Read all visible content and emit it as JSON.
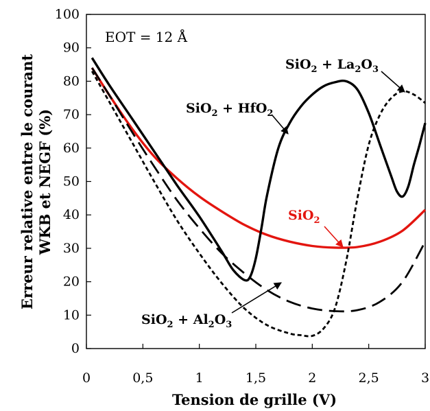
{
  "chart_data": {
    "type": "line",
    "xlabel": "Tension de grille (V)",
    "ylabel_line1": "Erreur relative entre le courant",
    "ylabel_line2": "WKB et NEGF (%)",
    "xlim": [
      0,
      3
    ],
    "ylim": [
      0,
      100
    ],
    "x_ticks": [
      "0",
      "0,5",
      "1",
      "1,5",
      "2",
      "2,5",
      "3"
    ],
    "y_ticks": [
      "0",
      "10",
      "20",
      "30",
      "40",
      "50",
      "60",
      "70",
      "80",
      "90",
      "100"
    ],
    "grid": false,
    "annotation_text": "EOT = 12 Å",
    "series": [
      {
        "key": "sio2",
        "label_main": "SiO",
        "label_sub": "2",
        "label_rest": "",
        "color": "#e3150f",
        "style": "solid",
        "points": [
          [
            0.05,
            84
          ],
          [
            0.2,
            76
          ],
          [
            0.4,
            66
          ],
          [
            0.6,
            57.5
          ],
          [
            0.8,
            51
          ],
          [
            1.0,
            45.5
          ],
          [
            1.2,
            41
          ],
          [
            1.4,
            37
          ],
          [
            1.6,
            34
          ],
          [
            1.8,
            32
          ],
          [
            2.0,
            30.7
          ],
          [
            2.2,
            30.2
          ],
          [
            2.4,
            30.4
          ],
          [
            2.6,
            32
          ],
          [
            2.8,
            35.3
          ],
          [
            3.0,
            41.5
          ]
        ]
      },
      {
        "key": "hfo2",
        "label_main": "SiO",
        "label_sub": "2",
        "label_rest": " + HfO",
        "label_sub2": "2",
        "label_tail": "",
        "color": "#000000",
        "style": "solid",
        "points": [
          [
            0.05,
            87
          ],
          [
            0.2,
            79
          ],
          [
            0.4,
            69
          ],
          [
            0.6,
            59
          ],
          [
            0.8,
            49
          ],
          [
            1.0,
            39.5
          ],
          [
            1.2,
            29
          ],
          [
            1.3,
            23.5
          ],
          [
            1.4,
            20.5
          ],
          [
            1.45,
            21.5
          ],
          [
            1.5,
            27
          ],
          [
            1.55,
            36
          ],
          [
            1.6,
            46
          ],
          [
            1.7,
            60
          ],
          [
            1.8,
            67.5
          ],
          [
            1.9,
            72.5
          ],
          [
            2.0,
            76
          ],
          [
            2.1,
            78.5
          ],
          [
            2.2,
            79.7
          ],
          [
            2.3,
            80
          ],
          [
            2.4,
            77.5
          ],
          [
            2.5,
            70.5
          ],
          [
            2.6,
            61
          ],
          [
            2.7,
            51.5
          ],
          [
            2.75,
            47
          ],
          [
            2.8,
            45.5
          ],
          [
            2.85,
            48.5
          ],
          [
            2.9,
            55
          ],
          [
            2.95,
            61
          ],
          [
            3.0,
            67.5
          ]
        ]
      },
      {
        "key": "al2o3",
        "label_main": "SiO",
        "label_sub": "2",
        "label_rest": " + Al",
        "label_sub2": "2",
        "label_tail": "O",
        "label_sub3": "3",
        "color": "#000000",
        "style": "dashed",
        "points": [
          [
            0.05,
            84
          ],
          [
            0.2,
            76
          ],
          [
            0.4,
            65
          ],
          [
            0.6,
            54.5
          ],
          [
            0.8,
            44.5
          ],
          [
            1.0,
            36
          ],
          [
            1.2,
            28.5
          ],
          [
            1.4,
            22.5
          ],
          [
            1.6,
            17.5
          ],
          [
            1.8,
            14
          ],
          [
            2.0,
            12
          ],
          [
            2.2,
            11.2
          ],
          [
            2.4,
            11.5
          ],
          [
            2.6,
            14
          ],
          [
            2.8,
            20
          ],
          [
            3.0,
            32
          ]
        ]
      },
      {
        "key": "la2o3",
        "label_main": "SiO",
        "label_sub": "2",
        "label_rest": " + La",
        "label_sub2": "2",
        "label_tail": "O",
        "label_sub3": "3",
        "color": "#000000",
        "style": "dotted",
        "points": [
          [
            0.05,
            83
          ],
          [
            0.2,
            74
          ],
          [
            0.4,
            62
          ],
          [
            0.6,
            50
          ],
          [
            0.8,
            38.5
          ],
          [
            1.0,
            28.5
          ],
          [
            1.2,
            19.5
          ],
          [
            1.4,
            12
          ],
          [
            1.6,
            7
          ],
          [
            1.8,
            4.5
          ],
          [
            1.9,
            4
          ],
          [
            2.0,
            3.8
          ],
          [
            2.1,
            6
          ],
          [
            2.2,
            12
          ],
          [
            2.3,
            26
          ],
          [
            2.4,
            45
          ],
          [
            2.5,
            61
          ],
          [
            2.6,
            70
          ],
          [
            2.7,
            75
          ],
          [
            2.8,
            77
          ],
          [
            2.9,
            76
          ],
          [
            3.0,
            73.5
          ]
        ]
      }
    ]
  }
}
